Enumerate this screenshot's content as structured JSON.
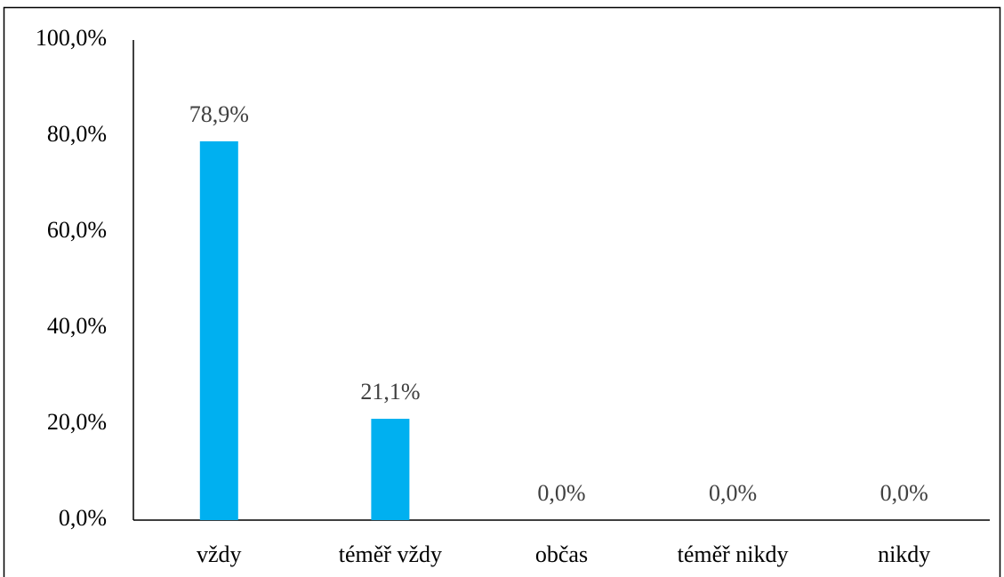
{
  "chart_data": {
    "type": "bar",
    "categories": [
      "vždy",
      "téměř vždy",
      "občas",
      "téměř nikdy",
      "nikdy"
    ],
    "values": [
      78.9,
      21.1,
      0,
      0,
      0
    ],
    "value_labels": [
      "78,9%",
      "21,1%",
      "0,0%",
      "0,0%",
      "0,0%"
    ],
    "color": "#00b0f0",
    "ylim": [
      0,
      100
    ],
    "yticks": [
      {
        "value": 0,
        "label": "0,0%"
      },
      {
        "value": 20,
        "label": "20,0%"
      },
      {
        "value": 40,
        "label": "40,0%"
      },
      {
        "value": 60,
        "label": "60,0%"
      },
      {
        "value": 80,
        "label": "80,0%"
      },
      {
        "value": 100,
        "label": "100,0%"
      }
    ],
    "grid": false
  }
}
